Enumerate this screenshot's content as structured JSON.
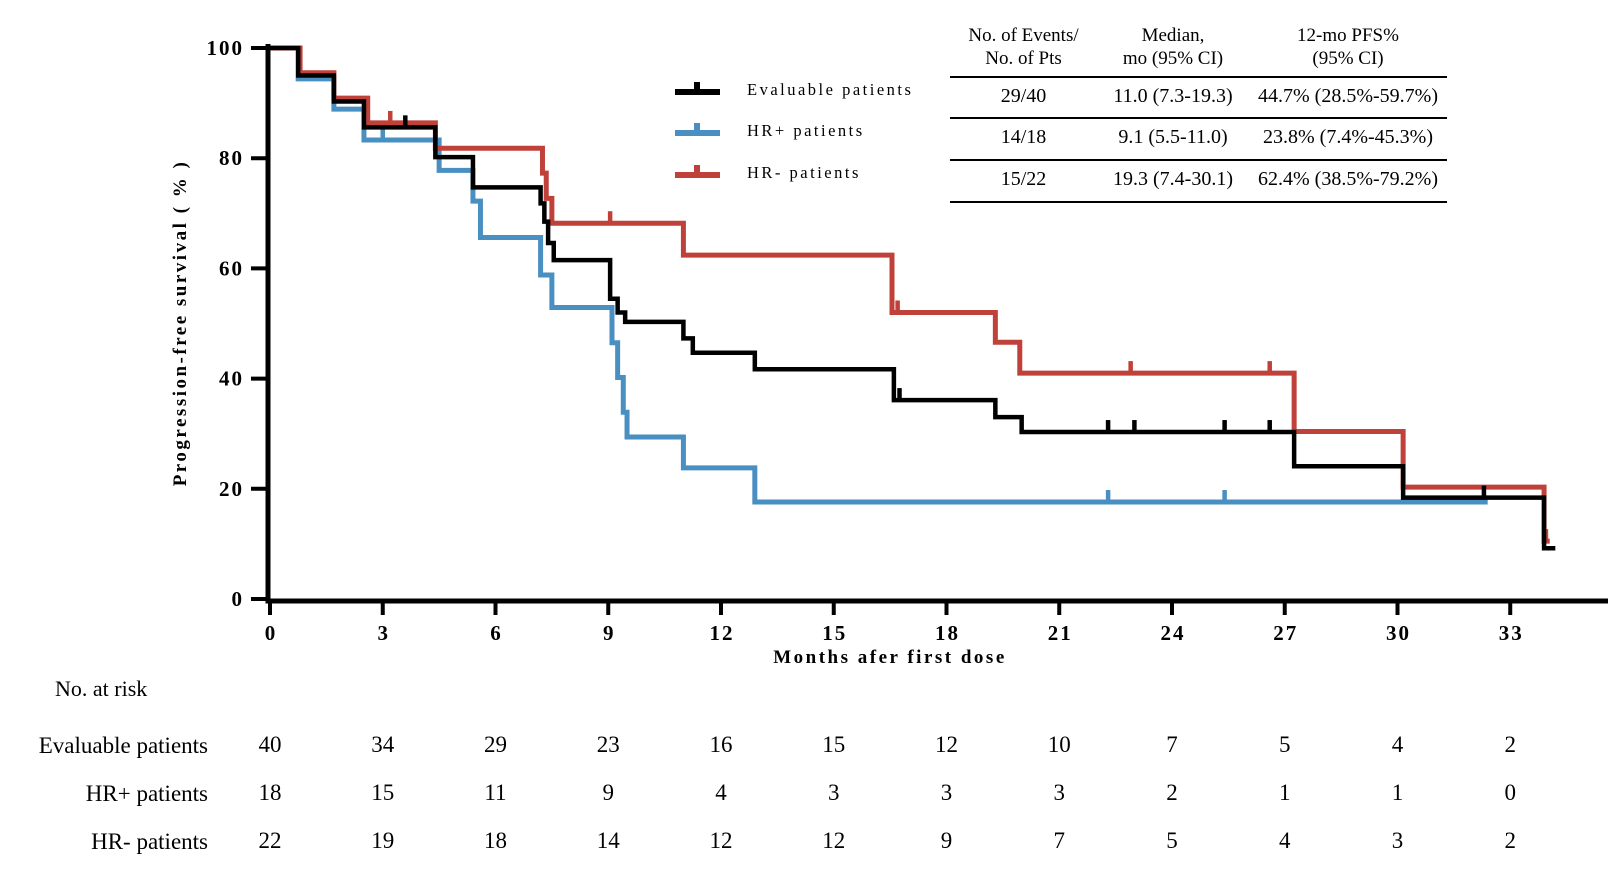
{
  "legend": {
    "items": [
      {
        "label": "Evaluable patients",
        "color": "#000000"
      },
      {
        "label": "HR+ patients",
        "color": "#4a8fc2"
      },
      {
        "label": "HR- patients",
        "color": "#c0413a"
      }
    ]
  },
  "stats_table": {
    "headers": [
      "No. of Events/\nNo. of Pts",
      "Median,\nmo (95% CI)",
      "12-mo PFS%\n(95% CI)"
    ],
    "rows": [
      {
        "group": "Evaluable patients",
        "events_pts": "29/40",
        "median": "11.0 (7.3-19.3)",
        "pfs12": "44.7% (28.5%-59.7%)"
      },
      {
        "group": "HR+ patients",
        "events_pts": "14/18",
        "median": "9.1 (5.5-11.0)",
        "pfs12": "23.8% (7.4%-45.3%)"
      },
      {
        "group": "HR- patients",
        "events_pts": "15/22",
        "median": "19.3 (7.4-30.1)",
        "pfs12": "62.4% (38.5%-79.2%)"
      }
    ]
  },
  "risk_table": {
    "title": "No. at risk",
    "months": [
      0,
      3,
      6,
      9,
      12,
      15,
      18,
      21,
      24,
      27,
      30,
      33
    ],
    "rows": [
      {
        "label": "Evaluable patients",
        "counts": [
          40,
          34,
          29,
          23,
          16,
          15,
          12,
          10,
          7,
          5,
          4,
          2
        ]
      },
      {
        "label": "HR+ patients",
        "counts": [
          18,
          15,
          11,
          9,
          4,
          3,
          3,
          3,
          2,
          1,
          1,
          0
        ]
      },
      {
        "label": "HR- patients",
        "counts": [
          22,
          19,
          18,
          14,
          12,
          12,
          9,
          7,
          5,
          4,
          3,
          2
        ]
      }
    ]
  },
  "chart_data": {
    "type": "line",
    "subtype": "kaplan_meier_step",
    "title": "",
    "xlabel": "Months afer first dose",
    "ylabel": "Progression-free survival ( % )",
    "xlim": [
      0,
      35.6
    ],
    "ylim": [
      0,
      100
    ],
    "x_ticks": [
      0,
      3,
      6,
      9,
      12,
      15,
      18,
      21,
      24,
      27,
      30,
      33
    ],
    "y_ticks": [
      0,
      20,
      40,
      60,
      80,
      100
    ],
    "grid": false,
    "series": [
      {
        "name": "Evaluable patients",
        "color": "#000000",
        "steps": [
          [
            0,
            100
          ],
          [
            0.75,
            95
          ],
          [
            1.7,
            90.3
          ],
          [
            2.5,
            85.6
          ],
          [
            4.4,
            80.2
          ],
          [
            5.4,
            74.7
          ],
          [
            7.2,
            71.8
          ],
          [
            7.3,
            68.5
          ],
          [
            7.4,
            64.6
          ],
          [
            7.55,
            61.5
          ],
          [
            9.05,
            54.5
          ],
          [
            9.25,
            52
          ],
          [
            9.45,
            50.3
          ],
          [
            11,
            47.3
          ],
          [
            11.25,
            44.7
          ],
          [
            12.9,
            41.7
          ],
          [
            16.6,
            36.1
          ],
          [
            19.3,
            33
          ],
          [
            20,
            30.3
          ],
          [
            27.25,
            24.1
          ],
          [
            30.15,
            18.4
          ],
          [
            33.9,
            9.2
          ]
        ],
        "end_month": 34.2,
        "censor_marks": [
          [
            3.6,
            85.6
          ],
          [
            16.75,
            36.1
          ],
          [
            22.3,
            30.3
          ],
          [
            23,
            30.3
          ],
          [
            25.4,
            30.3
          ],
          [
            26.6,
            30.3
          ],
          [
            32.3,
            18.4
          ]
        ]
      },
      {
        "name": "HR+ patients",
        "color": "#4a8fc2",
        "steps": [
          [
            0,
            100
          ],
          [
            0.75,
            94.4
          ],
          [
            1.7,
            88.9
          ],
          [
            2.5,
            83.3
          ],
          [
            4.5,
            77.8
          ],
          [
            5.4,
            72.2
          ],
          [
            5.6,
            65.6
          ],
          [
            7.2,
            58.8
          ],
          [
            7.5,
            52.9
          ],
          [
            9.1,
            46.5
          ],
          [
            9.25,
            40.2
          ],
          [
            9.4,
            33.9
          ],
          [
            9.5,
            29.4
          ],
          [
            11,
            23.8
          ],
          [
            12.9,
            17.6
          ]
        ],
        "end_month": 32.4,
        "censor_marks": [
          [
            3,
            83.3
          ],
          [
            22.3,
            17.6
          ],
          [
            25.4,
            17.6
          ]
        ]
      },
      {
        "name": "HR- patients",
        "color": "#c0413a",
        "steps": [
          [
            0,
            100
          ],
          [
            0.8,
            95.5
          ],
          [
            1.7,
            90.9
          ],
          [
            2.6,
            86.4
          ],
          [
            4.4,
            81.8
          ],
          [
            7.25,
            77.3
          ],
          [
            7.35,
            72.7
          ],
          [
            7.5,
            68.2
          ],
          [
            11,
            62.4
          ],
          [
            16.55,
            52
          ],
          [
            19.3,
            46.6
          ],
          [
            19.95,
            41
          ],
          [
            27.25,
            30.4
          ],
          [
            30.15,
            20.3
          ],
          [
            33.9,
            10.5
          ]
        ],
        "end_month": 34.05,
        "censor_marks": [
          [
            3.2,
            86.4
          ],
          [
            9.05,
            68.2
          ],
          [
            16.7,
            52
          ],
          [
            22.9,
            41
          ],
          [
            26.6,
            41
          ],
          [
            33.95,
            10.5
          ]
        ]
      }
    ]
  }
}
